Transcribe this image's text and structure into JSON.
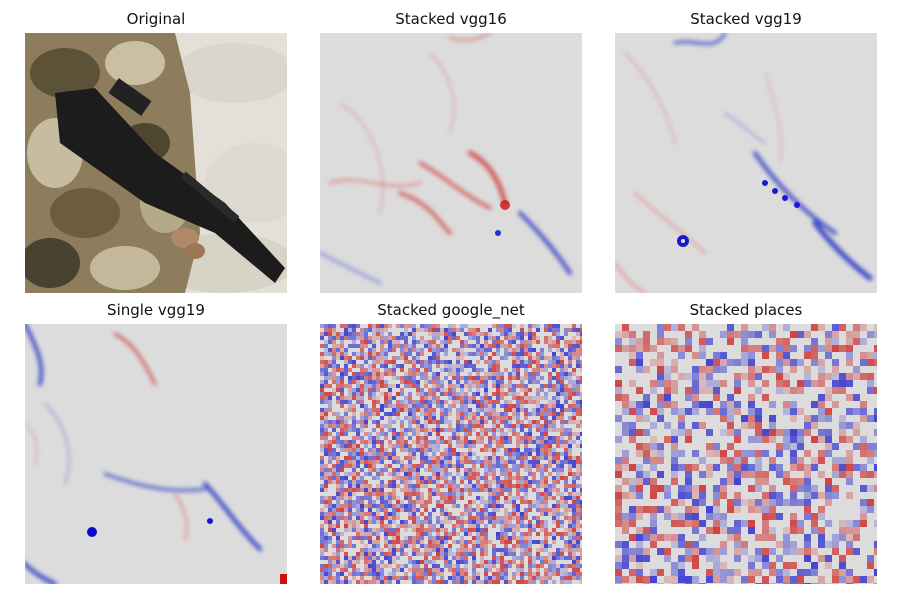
{
  "figure": {
    "panels": [
      {
        "title": "Original",
        "kind": "photo"
      },
      {
        "title": "Stacked vgg16",
        "kind": "saliency-smooth"
      },
      {
        "title": "Stacked vgg19",
        "kind": "saliency-smooth"
      },
      {
        "title": "Single vgg19",
        "kind": "saliency-smooth"
      },
      {
        "title": "Stacked google_net",
        "kind": "saliency-noisy"
      },
      {
        "title": "Stacked places",
        "kind": "saliency-blocky"
      }
    ]
  },
  "colors": {
    "background": "#dcdcdc",
    "positive": "#cc1111",
    "negative": "#1111cc"
  }
}
